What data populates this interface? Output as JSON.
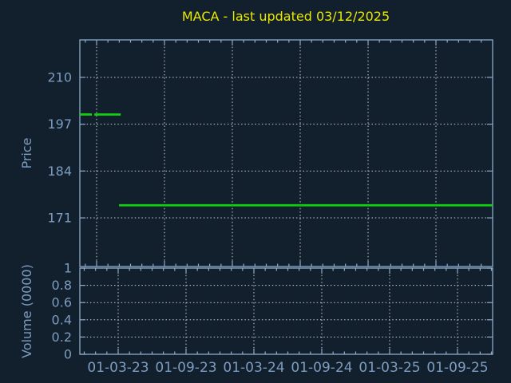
{
  "title": "MACA - last updated 03/12/2025",
  "colors": {
    "background": "#121f2c",
    "frame": "#8cabcd",
    "grid": "#c9ced4",
    "tick_text": "#7d9dc0",
    "title_text": "#e9e900",
    "series_green": "#10d010"
  },
  "price_plot": {
    "ylabel": "Price",
    "ytick_labels": [
      "210",
      "197",
      "184",
      "171"
    ]
  },
  "volume_plot": {
    "ylabel": "Volume (0000)",
    "ytick_labels": [
      "1",
      "0.8",
      "0.6",
      "0.4",
      "0.2",
      "0"
    ]
  },
  "x_axis": {
    "tick_labels": [
      "01-03-23",
      "01-09-23",
      "01-03-24",
      "01-09-24",
      "01-03-25",
      "01-09-25"
    ]
  },
  "chart_data": [
    {
      "type": "line",
      "title": "MACA - last updated 03/12/2025",
      "ylabel": "Price",
      "yticks": [
        210,
        197,
        184,
        171
      ],
      "ytick_labels": [
        "210",
        "197",
        "184",
        "171"
      ],
      "ylim": [
        157.5,
        220.4
      ],
      "xtick_labels": [
        "01-03-23",
        "01-09-23",
        "01-03-24",
        "01-09-24",
        "01-03-25",
        "01-09-25"
      ],
      "grid": "dotted",
      "legend": "none",
      "series": [
        {
          "name": "price",
          "color": "#10d010",
          "segments": [
            {
              "y": 199.7,
              "x0": 0.0,
              "x1": 0.029
            },
            {
              "y": 199.7,
              "x0": 0.035,
              "x1": 0.099
            },
            {
              "y": 174.5,
              "x0": 0.095,
              "x1": 1.0
            }
          ]
        }
      ]
    },
    {
      "type": "line",
      "title": "",
      "ylabel": "Volume (0000)",
      "yticks": [
        1,
        0.8,
        0.6,
        0.4,
        0.2,
        0
      ],
      "ytick_labels": [
        "1",
        "0.8",
        "0.6",
        "0.4",
        "0.2",
        "0"
      ],
      "ylim": [
        0,
        1
      ],
      "xtick_labels": [
        "01-03-23",
        "01-09-23",
        "01-03-24",
        "01-09-24",
        "01-03-25",
        "01-09-25"
      ],
      "grid": "dotted",
      "legend": "none",
      "series": []
    }
  ]
}
